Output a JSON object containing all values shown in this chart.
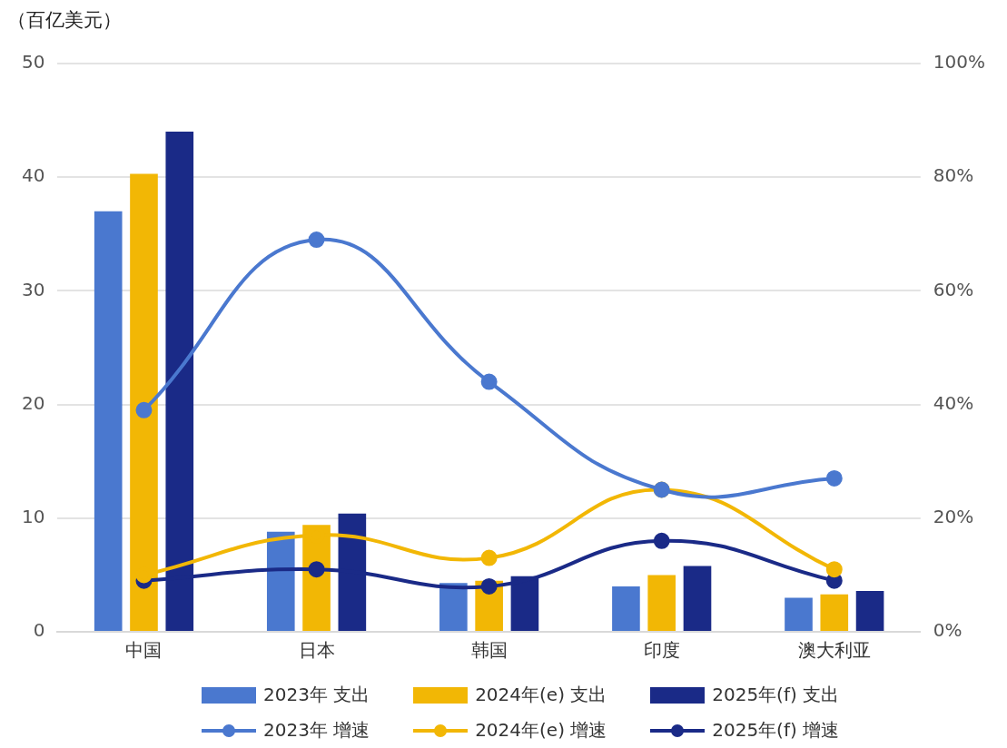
{
  "chart_data": {
    "type": "bar",
    "ylabel": "（百亿美元）",
    "categories": [
      "中国",
      "日本",
      "韩国",
      "印度",
      "澳大利亚"
    ],
    "series": [
      {
        "name": "2023年 支出",
        "color": "#4a78cf",
        "values": [
          37,
          8.8,
          4.3,
          4,
          3
        ]
      },
      {
        "name": "2024年(e) 支出",
        "color": "#f2b705",
        "values": [
          40.3,
          9.4,
          4.5,
          5,
          3.3
        ]
      },
      {
        "name": "2025年(f) 支出",
        "color": "#1a2a87",
        "values": [
          44,
          10.4,
          4.9,
          5.8,
          3.6
        ]
      },
      {
        "name": "2023年 增速",
        "type": "line",
        "axis": "y2",
        "color": "#4a78cf",
        "values": [
          39,
          69,
          44,
          25,
          27
        ]
      },
      {
        "name": "2024年(e) 增速",
        "type": "line",
        "axis": "y2",
        "color": "#f2b705",
        "values": [
          10,
          17,
          13,
          25,
          11
        ]
      },
      {
        "name": "2025年(f) 增速",
        "type": "line",
        "axis": "y2",
        "color": "#1a2a87",
        "values": [
          9,
          11,
          8,
          16,
          9
        ]
      }
    ],
    "ylim": [
      0,
      50
    ],
    "yticks": [
      0,
      10,
      20,
      30,
      40,
      50
    ],
    "y2lim": [
      0,
      100
    ],
    "y2ticks": [
      {
        "value": 0,
        "label": "0%"
      },
      {
        "value": 20,
        "label": "20%"
      },
      {
        "value": 40,
        "label": "40%"
      },
      {
        "value": 60,
        "label": "60%"
      },
      {
        "value": 80,
        "label": "80%"
      },
      {
        "value": 100,
        "label": "100%"
      }
    ],
    "grid": "y",
    "legend": "bottom",
    "marker": "circle",
    "line_style": "solid"
  }
}
